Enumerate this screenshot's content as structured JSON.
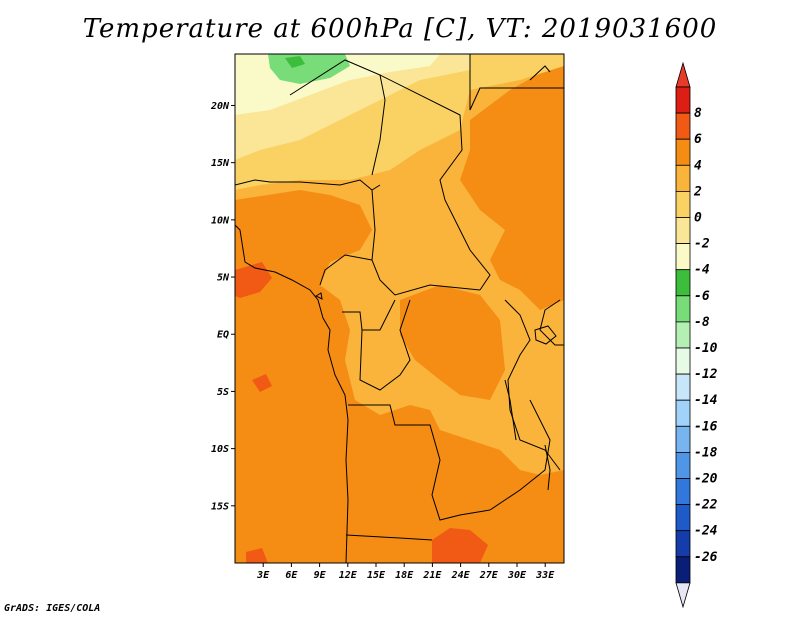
{
  "title": "Temperature at 600hPa [C], VT: 2019031600",
  "footer": "GrADS: IGES/COLA",
  "map": {
    "lon_range": [
      0,
      35
    ],
    "lat_range": [
      -20,
      24.5
    ],
    "lon_ticks": [
      "3E",
      "6E",
      "9E",
      "12E",
      "15E",
      "18E",
      "21E",
      "24E",
      "27E",
      "30E",
      "33E"
    ],
    "lat_ticks": [
      "20N",
      "15N",
      "10N",
      "5N",
      "EQ",
      "5S",
      "10S",
      "15S"
    ]
  },
  "colorbar": {
    "labels": [
      "8",
      "6",
      "4",
      "2",
      "0",
      "-2",
      "-4",
      "-6",
      "-8",
      "-10",
      "-12",
      "-14",
      "-16",
      "-18",
      "-20",
      "-22",
      "-24",
      "-26"
    ],
    "colors": [
      "#dc1e14",
      "#f05a14",
      "#f58c14",
      "#fab43c",
      "#fad264",
      "#fae696",
      "#fafac8",
      "#3cbe3c",
      "#78dc78",
      "#b4f0b4",
      "#e6fae6",
      "#c8e6fa",
      "#a0d2fa",
      "#78b4f0",
      "#5096e6",
      "#3278dc",
      "#1e5ac8",
      "#143caa",
      "#0a1e78"
    ],
    "top_arrow_color": "#e63c28",
    "bottom_arrow_color": "#e6e6f5"
  }
}
